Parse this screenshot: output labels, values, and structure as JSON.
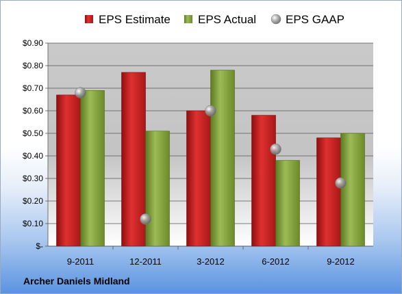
{
  "company": "Archer Daniels Midland",
  "chart_data": {
    "type": "bar",
    "title": "",
    "xlabel": "",
    "ylabel": "",
    "categories": [
      "9-2011",
      "12-2011",
      "3-2012",
      "6-2012",
      "9-2012"
    ],
    "series": [
      {
        "name": "EPS Estimate",
        "kind": "bar",
        "color": "#cc2222",
        "values": [
          0.67,
          0.77,
          0.6,
          0.58,
          0.48
        ]
      },
      {
        "name": "EPS Actual",
        "kind": "bar",
        "color": "#7f9c35",
        "values": [
          0.69,
          0.51,
          0.78,
          0.38,
          0.5
        ]
      },
      {
        "name": "EPS GAAP",
        "kind": "marker",
        "color": "#9a9a9a",
        "values": [
          0.68,
          0.12,
          0.6,
          0.43,
          0.28
        ]
      }
    ],
    "ylim": [
      0,
      0.9
    ],
    "yticks": [
      0,
      0.1,
      0.2,
      0.3,
      0.4,
      0.5,
      0.6,
      0.7,
      0.8,
      0.9
    ],
    "ytick_labels": [
      "$-",
      "$0.10",
      "$0.20",
      "$0.30",
      "$0.40",
      "$0.50",
      "$0.60",
      "$0.70",
      "$0.80",
      "$0.90"
    ],
    "grid": true,
    "legend": "top"
  }
}
